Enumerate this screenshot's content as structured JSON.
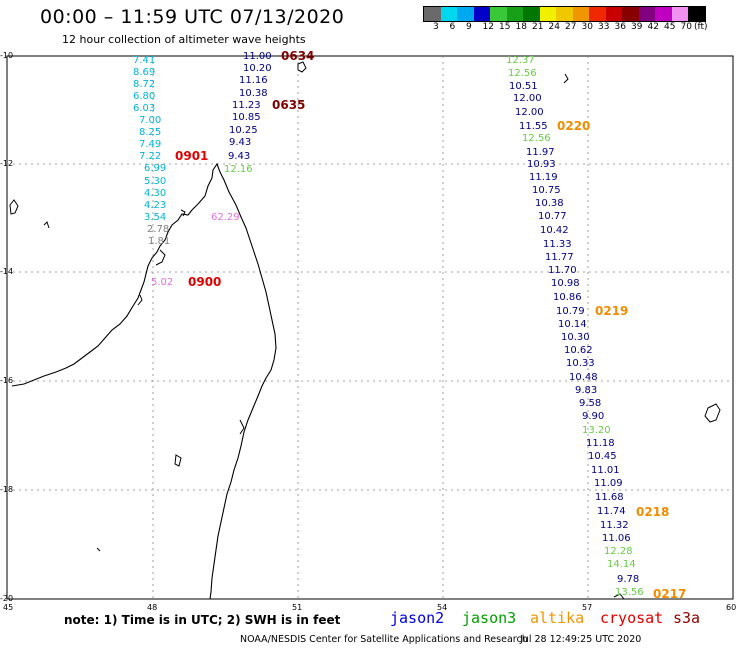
{
  "title": "00:00 – 11:59 UTC 07/13/2020",
  "subtitle": "12 hour collection of altimeter wave heights",
  "colorbar": {
    "colors": [
      "#6a6a6a",
      "#00d8f0",
      "#00a8f0",
      "#0000c8",
      "#38c838",
      "#18a018",
      "#007800",
      "#f0f000",
      "#f0c800",
      "#f09600",
      "#f02800",
      "#c80000",
      "#880000",
      "#800080",
      "#c000c0",
      "#f090f0",
      "#000000"
    ],
    "labels": [
      "3",
      "6",
      "9",
      "12",
      "15",
      "18",
      "21",
      "24",
      "27",
      "30",
      "33",
      "36",
      "39",
      "42",
      "45",
      "70",
      "(ft)"
    ]
  },
  "lat_labels": [
    "-10",
    "-12",
    "-14",
    "-16",
    "-18",
    "-20"
  ],
  "lon_labels": [
    "45",
    "48",
    "51",
    "54",
    "57",
    "60"
  ],
  "passes": {
    "p_cyan": {
      "values": [
        "7.41",
        "8.69",
        "8.72",
        "6.80",
        "6.03",
        "7.00",
        "8.25",
        "7.49",
        "7.22",
        "6.99",
        "5.30",
        "4.30",
        "4.23",
        "3.54",
        "2.78",
        "1.81",
        "5.02"
      ],
      "colors": [
        "#00b4d8",
        "#00b4d8",
        "#00b4d8",
        "#00b4d8",
        "#00b4d8",
        "#00b4d8",
        "#00b4d8",
        "#00b4d8",
        "#00b4d8",
        "#00b4d8",
        "#00b4d8",
        "#00b4d8",
        "#00b4d8",
        "#00b4d8",
        "#808080",
        "#808080",
        "#e070e0"
      ]
    },
    "p_mid": {
      "values": [
        "11.00",
        "10.20",
        "11.16",
        "10.38",
        "11.23",
        "10.85",
        "10.25",
        "9.43",
        "9.43",
        "12.16",
        "62.29"
      ],
      "colors": [
        "#000080",
        "#000080",
        "#000080",
        "#000080",
        "#000080",
        "#000080",
        "#000080",
        "#000080",
        "#000080",
        "#66cc44",
        "#e070e0"
      ]
    },
    "p_east": {
      "values": [
        "12.37",
        "12.56",
        "10.51",
        "12.00",
        "12.00",
        "11.55",
        "12.56",
        "11.97",
        "10.93",
        "11.19",
        "10.75",
        "10.38",
        "10.77",
        "10.42",
        "11.33",
        "11.77",
        "11.70",
        "10.98",
        "10.86",
        "10.79",
        "10.14",
        "10.30",
        "10.62",
        "10.33",
        "10.48",
        "9.83",
        "9.58",
        "9.90",
        "13.20",
        "11.18",
        "10.45",
        "11.01",
        "11.09",
        "11.68",
        "11.74",
        "11.32",
        "11.06",
        "12.28",
        "14.14",
        "9.78",
        "13.56"
      ],
      "colors": [
        "#66cc44",
        "#66cc44",
        "#000080",
        "#000080",
        "#000080",
        "#000080",
        "#66cc44",
        "#000080",
        "#000080",
        "#000080",
        "#000080",
        "#000080",
        "#000080",
        "#000080",
        "#000080",
        "#000080",
        "#000080",
        "#000080",
        "#000080",
        "#000080",
        "#000080",
        "#000080",
        "#000080",
        "#000080",
        "#000080",
        "#000080",
        "#000080",
        "#000080",
        "#66cc44",
        "#000080",
        "#000080",
        "#000080",
        "#000080",
        "#000080",
        "#000080",
        "#000080",
        "#000080",
        "#66cc44",
        "#66cc44",
        "#000080",
        "#66cc44"
      ]
    }
  },
  "times": [
    "0634",
    "0635",
    "0901",
    "0900",
    "0220",
    "0219",
    "0218",
    "0217"
  ],
  "time_colors": {
    "maroon": "#800000",
    "red": "#e00000",
    "orange": "#f08c00"
  },
  "note": "note: 1) Time is in UTC; 2) SWH is in feet",
  "legend": [
    {
      "label": "jason2",
      "color": "#0000e0"
    },
    {
      "label": "jason3",
      "color": "#00a000"
    },
    {
      "label": "altika",
      "color": "#f09600"
    },
    {
      "label": "cryosat",
      "color": "#e00000"
    },
    {
      "label": "s3a",
      "color": "#900000"
    }
  ],
  "credit": "NOAA/NESDIS Center for Satellite Applications and Research",
  "stamp": "Jul 28 12:49:25 UTC 2020"
}
